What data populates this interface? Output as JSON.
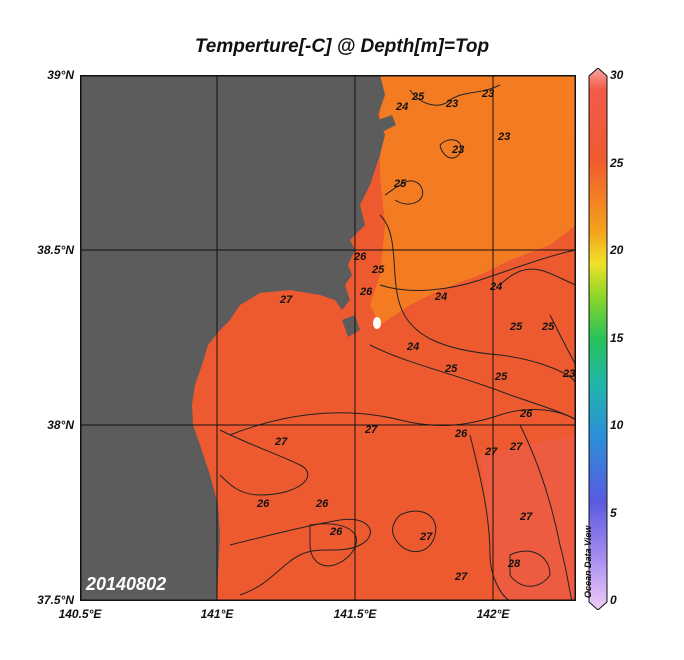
{
  "title": "Temperture[-C] @ Depth[m]=Top",
  "date_stamp": "20140802",
  "watermark": "Ocean Data View",
  "axes": {
    "lat_labels": [
      "39°N",
      "38.5°N",
      "38°N",
      "37.5°N"
    ],
    "lon_labels": [
      "140.5°E",
      "141°E",
      "141.5°E",
      "142°E"
    ]
  },
  "colorbar": {
    "ticks": [
      "30",
      "25",
      "20",
      "15",
      "10",
      "5",
      "0"
    ],
    "range": [
      0,
      30
    ]
  },
  "contour_labels": [
    "24",
    "25",
    "23",
    "23",
    "23",
    "23",
    "25",
    "25",
    "26",
    "26",
    "27",
    "24",
    "24",
    "24",
    "25",
    "25",
    "25",
    "25",
    "23",
    "26",
    "27",
    "27",
    "27",
    "26",
    "27",
    "26",
    "26",
    "26",
    "27",
    "27",
    "27",
    "28"
  ],
  "colors": {
    "land": "#5c5c5c",
    "sea_warm": "#ee5233",
    "sea_cool": "#f37d22"
  }
}
